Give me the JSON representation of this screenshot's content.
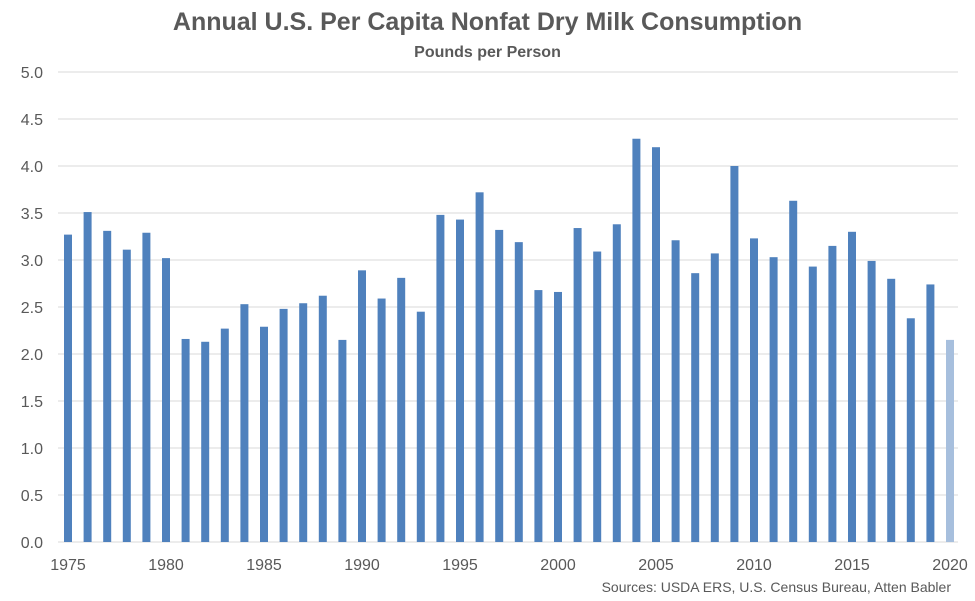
{
  "chart_data": {
    "type": "bar",
    "title": "Annual U.S. Per Capita Nonfat Dry Milk Consumption",
    "subtitle": "Pounds per Person",
    "source": "Sources: USDA ERS, U.S. Census Bureau, Atten Babler",
    "xlabel": "",
    "ylabel": "",
    "ylim": [
      0,
      5
    ],
    "yticks": [
      "0.0",
      "0.5",
      "1.0",
      "1.5",
      "2.0",
      "2.5",
      "3.0",
      "3.5",
      "4.0",
      "4.5",
      "5.0"
    ],
    "xtick_labels": [
      "1975",
      "1980",
      "1985",
      "1990",
      "1995",
      "2000",
      "2005",
      "2010",
      "2015",
      "2020"
    ],
    "grid": true,
    "legend": "none",
    "categories": [
      1975,
      1976,
      1977,
      1978,
      1979,
      1980,
      1981,
      1982,
      1983,
      1984,
      1985,
      1986,
      1987,
      1988,
      1989,
      1990,
      1991,
      1992,
      1993,
      1994,
      1995,
      1996,
      1997,
      1998,
      1999,
      2000,
      2001,
      2002,
      2003,
      2004,
      2005,
      2006,
      2007,
      2008,
      2009,
      2010,
      2011,
      2012,
      2013,
      2014,
      2015,
      2016,
      2017,
      2018,
      2019,
      2020
    ],
    "values": [
      3.27,
      3.51,
      3.31,
      3.11,
      3.29,
      3.02,
      2.16,
      2.13,
      2.27,
      2.53,
      2.29,
      2.48,
      2.54,
      2.62,
      2.15,
      2.89,
      2.59,
      2.81,
      2.45,
      3.48,
      3.43,
      3.72,
      3.32,
      3.19,
      2.68,
      2.66,
      3.34,
      3.09,
      3.38,
      4.29,
      4.2,
      3.21,
      2.86,
      3.07,
      4.0,
      3.23,
      3.03,
      3.63,
      2.93,
      3.15,
      3.3,
      2.99,
      2.8,
      2.38,
      2.74,
      2.15
    ],
    "colors": {
      "bar": "#4f81bd",
      "highlight": "#a7bfdd",
      "grid": "#d9d9d9",
      "text": "#595959"
    },
    "highlight_categories": [
      2020
    ]
  }
}
